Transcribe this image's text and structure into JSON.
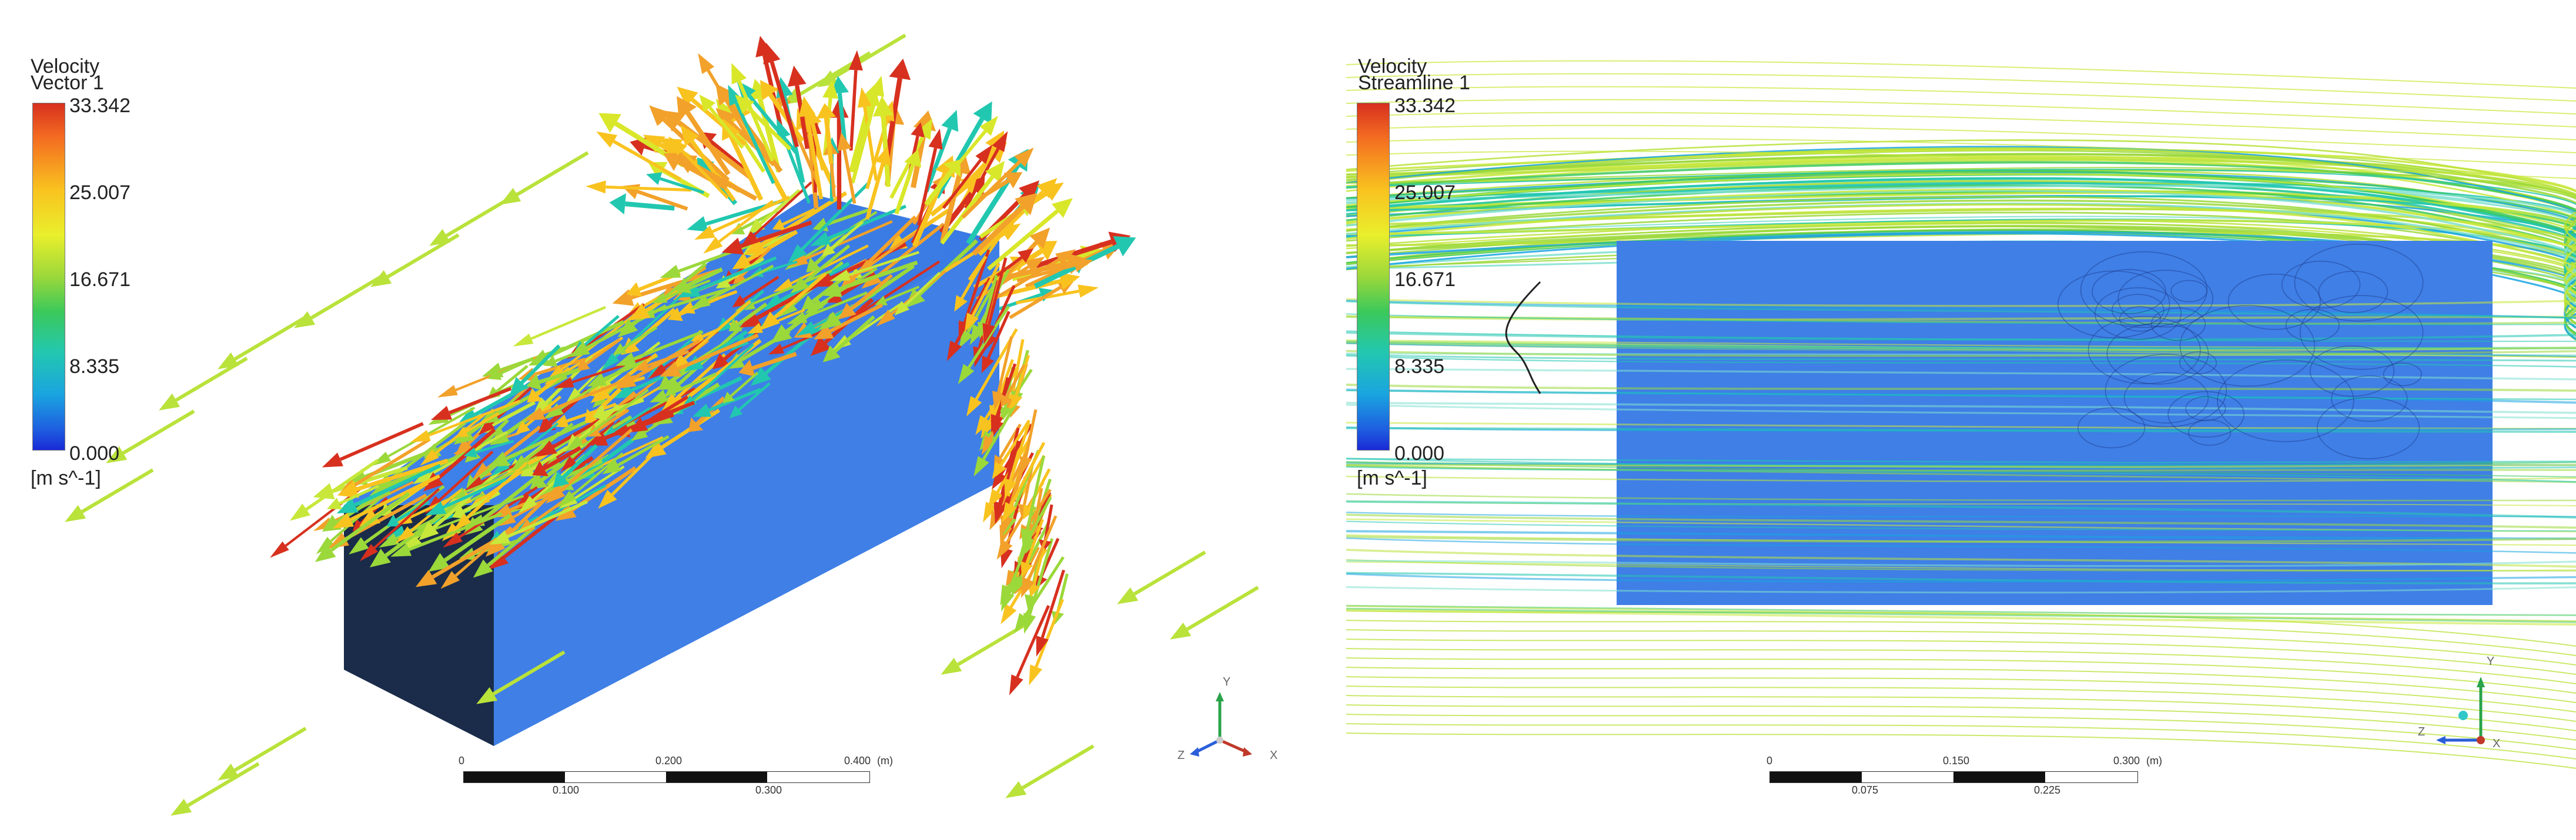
{
  "left_panel": {
    "legend": {
      "variable": "Velocity",
      "object": "Vector 1",
      "ticks": [
        "33.342",
        "25.007",
        "16.671",
        "8.335",
        "0.000"
      ],
      "units": "[m s^-1]"
    },
    "scale": {
      "top_labels": [
        "0",
        "0.200",
        "0.400"
      ],
      "unit": "(m)",
      "bottom_labels": [
        "0.100",
        "0.300"
      ]
    },
    "axes": {
      "x": "X",
      "y": "Y",
      "z": "Z"
    }
  },
  "right_panel": {
    "legend": {
      "variable": "Velocity",
      "object": "Streamline 1",
      "ticks": [
        "33.342",
        "25.007",
        "16.671",
        "8.335",
        "0.000"
      ],
      "units": "[m s^-1]"
    },
    "scale": {
      "top_labels": [
        "0",
        "0.150",
        "0.300"
      ],
      "unit": "(m)",
      "bottom_labels": [
        "0.075",
        "0.225"
      ]
    },
    "axes": {
      "x": "X",
      "y": "Y",
      "z": "Z"
    }
  },
  "colors": {
    "body_face": "#3f7fe6",
    "body_dark_face": "#1a2c4a",
    "max": "#d7301f",
    "high": "#f9c31f",
    "mid": "#9bd83a",
    "low": "#22c7b0",
    "min": "#1a2ad6"
  }
}
